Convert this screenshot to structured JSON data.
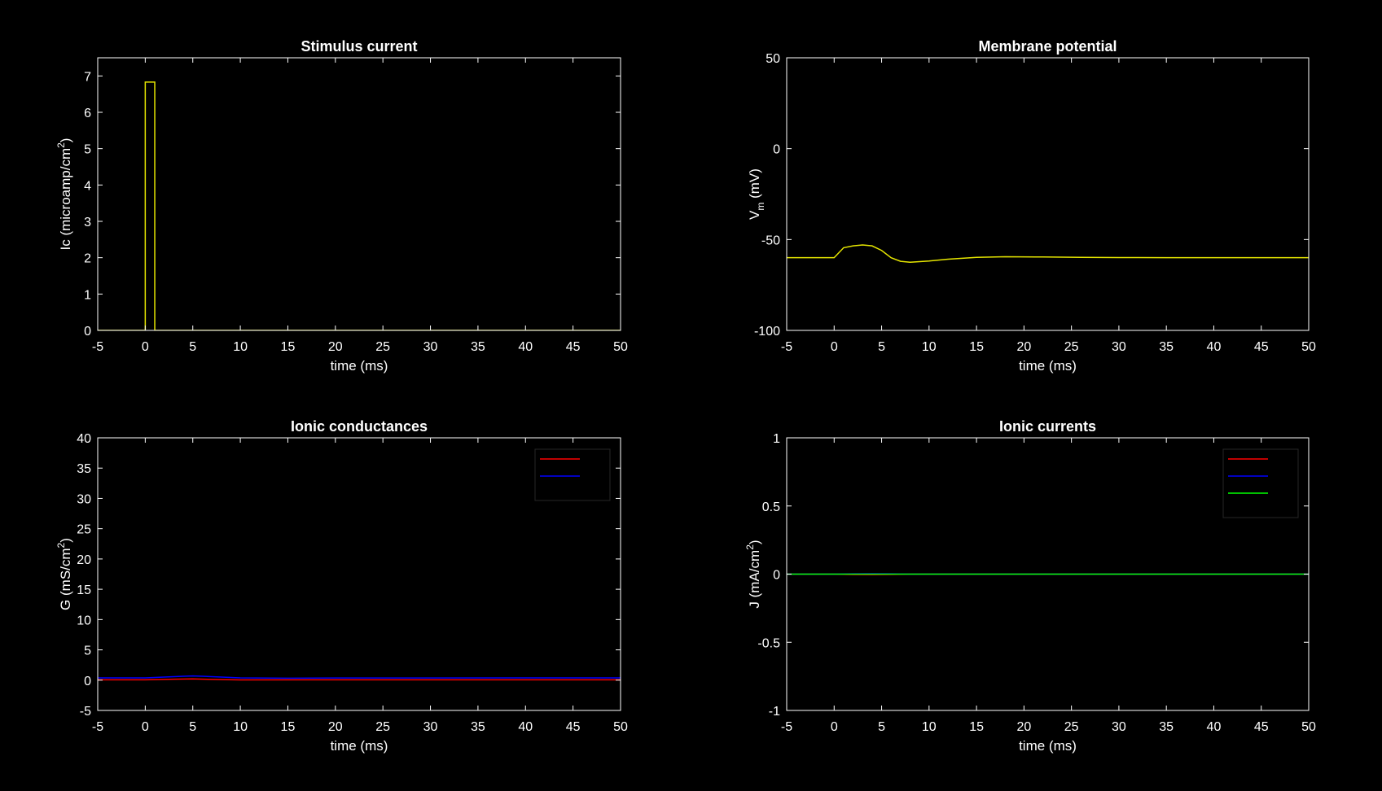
{
  "figure": {
    "background": "#000000",
    "axes_color": "#ffffff"
  },
  "chart_data": [
    {
      "type": "line",
      "title": "Stimulus current",
      "xlabel": "time (ms)",
      "ylabel": "Ic (microamp/cm",
      "ylabel_sup": "2",
      "ylabel_end": ")",
      "xlim": [
        -5,
        50
      ],
      "ylim": [
        0,
        7.5
      ],
      "xticks": [
        -5,
        0,
        5,
        10,
        15,
        20,
        25,
        30,
        35,
        40,
        45,
        50
      ],
      "yticks": [
        0,
        1,
        2,
        3,
        4,
        5,
        6,
        7
      ],
      "legend": null,
      "series": [
        {
          "color": "#e6e600",
          "x": [
            -5,
            0,
            0,
            1,
            1,
            50
          ],
          "y": [
            0,
            0,
            6.83,
            6.83,
            0,
            0
          ]
        }
      ]
    },
    {
      "type": "line",
      "title": "Membrane potential",
      "xlabel": "time (ms)",
      "ylabel": "V",
      "ylabel_sub": "m",
      "ylabel_end": " (mV)",
      "xlim": [
        -5,
        50
      ],
      "ylim": [
        -100,
        50
      ],
      "xticks": [
        -5,
        0,
        5,
        10,
        15,
        20,
        25,
        30,
        35,
        40,
        45,
        50
      ],
      "yticks": [
        -100,
        -50,
        0,
        50
      ],
      "legend": null,
      "series": [
        {
          "color": "#e6e600",
          "x": [
            -5,
            0,
            1,
            2,
            3,
            4,
            5,
            6,
            7,
            8,
            10,
            12,
            15,
            18,
            22,
            26,
            30,
            35,
            40,
            50
          ],
          "y": [
            -60,
            -60,
            -54.5,
            -53.5,
            -53,
            -53.5,
            -56,
            -60,
            -62,
            -62.5,
            -61.8,
            -60.8,
            -59.8,
            -59.5,
            -59.6,
            -59.8,
            -59.9,
            -60,
            -60,
            -60
          ]
        }
      ]
    },
    {
      "type": "line",
      "title": "Ionic conductances",
      "xlabel": "time (ms)",
      "ylabel": "G (mS/cm",
      "ylabel_sup": "2",
      "ylabel_end": ")",
      "xlim": [
        -5,
        50
      ],
      "ylim": [
        -5,
        40
      ],
      "xticks": [
        -5,
        0,
        5,
        10,
        15,
        20,
        25,
        30,
        35,
        40,
        45,
        50
      ],
      "yticks": [
        -5,
        0,
        5,
        10,
        15,
        20,
        25,
        30,
        35,
        40
      ],
      "legend": {
        "location": "top-right",
        "entries": [
          "",
          ""
        ]
      },
      "series": [
        {
          "color": "#ff0000",
          "x": [
            -5,
            0,
            3,
            5,
            7,
            10,
            20,
            50
          ],
          "y": [
            0.05,
            0.05,
            0.15,
            0.2,
            0.12,
            0.04,
            0.05,
            0.05
          ]
        },
        {
          "color": "#0000ff",
          "x": [
            -5,
            0,
            2,
            4,
            5,
            6,
            8,
            10,
            15,
            20,
            50
          ],
          "y": [
            0.37,
            0.37,
            0.5,
            0.65,
            0.7,
            0.65,
            0.5,
            0.38,
            0.33,
            0.36,
            0.37
          ]
        }
      ]
    },
    {
      "type": "line",
      "title": "Ionic currents",
      "xlabel": "time (ms)",
      "ylabel": "J (mA/cm",
      "ylabel_sup": "2",
      "ylabel_end": ")",
      "xlim": [
        -5,
        50
      ],
      "ylim": [
        -1,
        1
      ],
      "xticks": [
        -5,
        0,
        5,
        10,
        15,
        20,
        25,
        30,
        35,
        40,
        45,
        50
      ],
      "yticks": [
        -1,
        -0.5,
        0,
        0.5,
        1
      ],
      "legend": {
        "location": "top-right",
        "entries": [
          "",
          "",
          ""
        ]
      },
      "series": [
        {
          "color": "#ff0000",
          "x": [
            -5,
            0,
            2,
            4,
            6,
            8,
            50
          ],
          "y": [
            0,
            0,
            -0.003,
            -0.004,
            -0.002,
            0,
            0
          ]
        },
        {
          "color": "#0000ff",
          "x": [
            -5,
            0,
            2,
            4,
            6,
            8,
            50
          ],
          "y": [
            0,
            0,
            0.002,
            0.003,
            0.002,
            0,
            0
          ]
        },
        {
          "color": "#00ff00",
          "x": [
            -5,
            50
          ],
          "y": [
            0,
            0
          ]
        }
      ]
    }
  ]
}
